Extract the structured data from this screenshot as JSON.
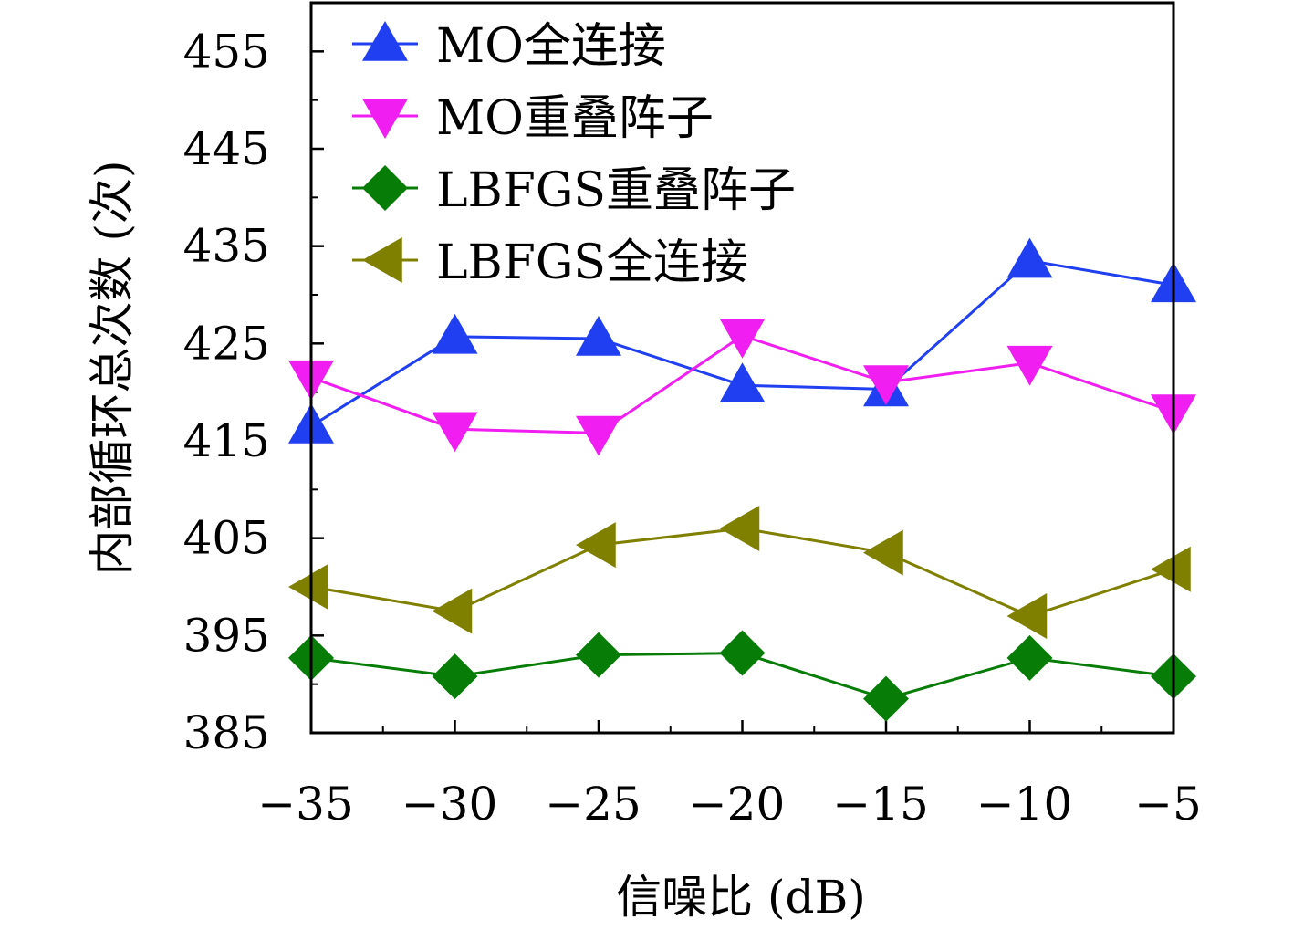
{
  "chart_data": {
    "type": "line",
    "xlabel": "信噪比 (dB)",
    "ylabel": "内部循环总次数 (次)",
    "x": [
      -35,
      -30,
      -25,
      -20,
      -15,
      -10,
      -5
    ],
    "xticks": [
      "−35",
      "−30",
      "−25",
      "−20",
      "−15",
      "−10",
      "−5"
    ],
    "xlim": [
      -35,
      -5
    ],
    "yticks": [
      "385",
      "395",
      "405",
      "415",
      "425",
      "435",
      "445",
      "455"
    ],
    "ylim": [
      385,
      460
    ],
    "legend_position": "top-left",
    "series": [
      {
        "name": "MO全连接",
        "marker": "triangle-up",
        "color": "#1f3ff0",
        "values": [
          416.5,
          425.7,
          425.5,
          420.7,
          420.3,
          433.5,
          431.0
        ]
      },
      {
        "name": "MO重叠阵子",
        "marker": "triangle-down",
        "color": "#f01ef0",
        "values": [
          421.5,
          416.2,
          415.8,
          425.8,
          421.0,
          423.0,
          418.0
        ]
      },
      {
        "name": "LBFGS重叠阵子",
        "marker": "diamond",
        "color": "#077d07",
        "values": [
          392.7,
          390.8,
          393.0,
          393.2,
          388.5,
          392.7,
          390.8
        ]
      },
      {
        "name": "LBFGS全连接",
        "marker": "triangle-left",
        "color": "#808000",
        "values": [
          400.0,
          397.5,
          404.3,
          406.0,
          403.5,
          397.0,
          401.8
        ]
      }
    ]
  }
}
